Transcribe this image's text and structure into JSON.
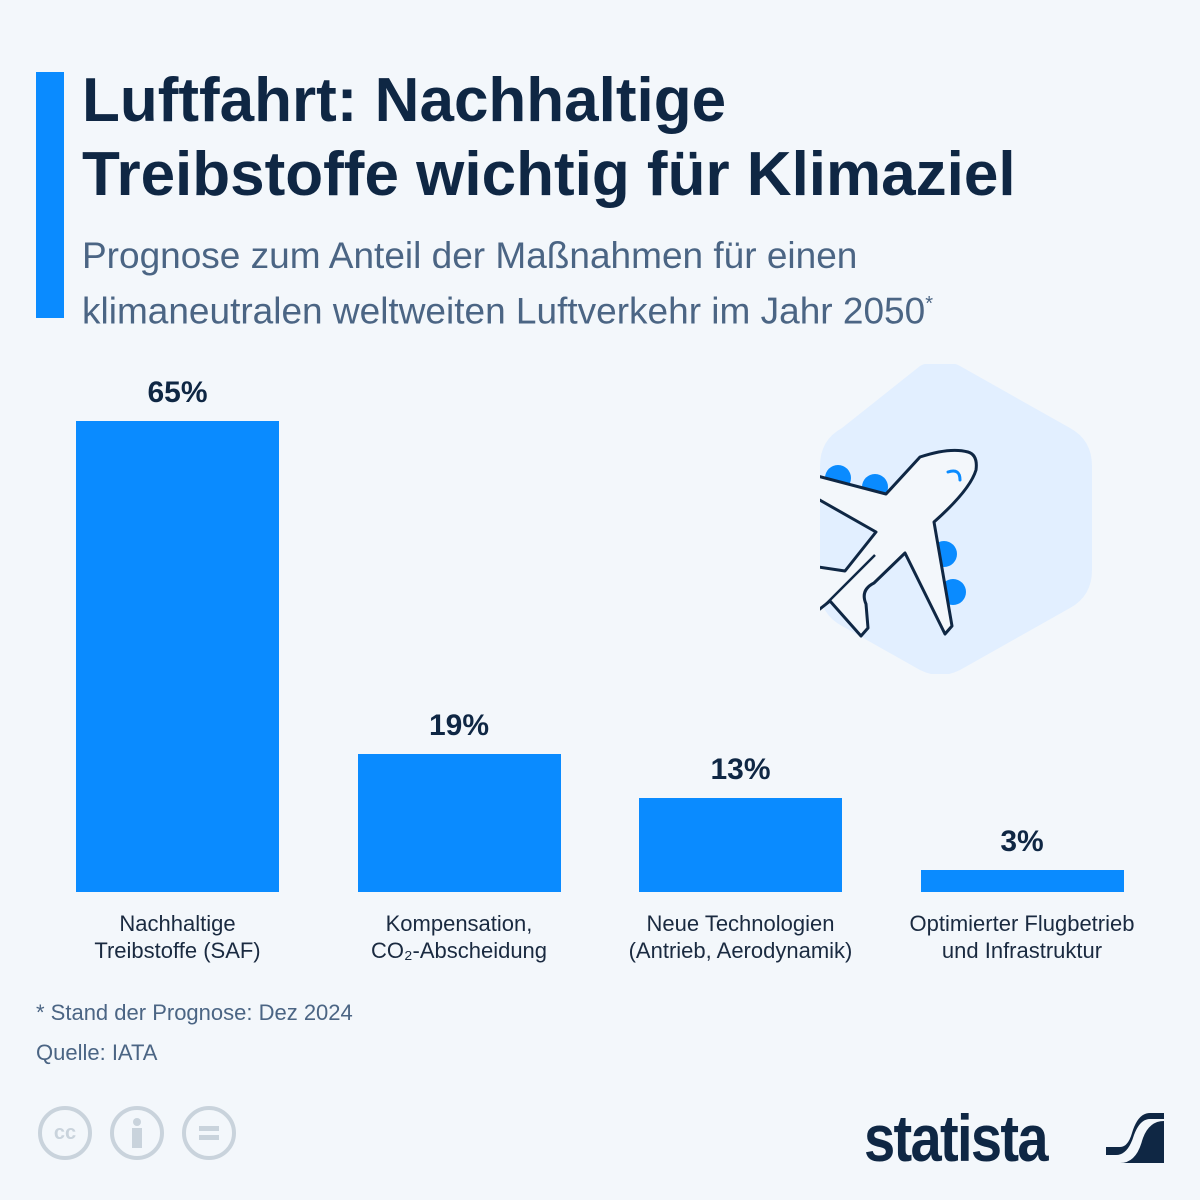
{
  "header": {
    "title_line1": "Luftfahrt: Nachhaltige",
    "title_line2": "Treibstoffe wichtig für Klimaziel",
    "subtitle_line1": "Prognose zum Anteil der Maßnahmen für einen",
    "subtitle_line2": "klimaneutralen weltweiten Luftverkehr im Jahr 2050",
    "subtitle_mark": "*"
  },
  "chart_data": {
    "type": "bar",
    "title": "Luftfahrt: Nachhaltige Treibstoffe wichtig für Klimaziel",
    "categories": [
      "Nachhaltige Treibstoffe (SAF)",
      "Kompensation, CO₂-Abscheidung",
      "Neue Technologien (Antrieb, Aerodynamik)",
      "Optimierter Flugbetrieb und Infrastruktur"
    ],
    "category_lines": [
      [
        "Nachhaltige",
        "Treibstoffe (SAF)"
      ],
      [
        "Kompensation,",
        "CO₂-Abscheidung"
      ],
      [
        "Neue Technologien",
        "(Antrieb, Aerodynamik)"
      ],
      [
        "Optimierter Flugbetrieb",
        "und Infrastruktur"
      ]
    ],
    "values": [
      65,
      19,
      13,
      3
    ],
    "value_labels": [
      "65%",
      "19%",
      "13%",
      "3%"
    ],
    "unit": "%",
    "ylim": [
      0,
      65
    ],
    "grid": false,
    "xlabel": "",
    "ylabel": "",
    "colors": {
      "bar": "#0a8bff"
    }
  },
  "footer": {
    "note": "* Stand der Prognose: Dez 2024",
    "source": "Quelle: IATA",
    "license_cc": "cc",
    "brand": "statista"
  },
  "icons": [
    "airplane-icon",
    "cc-icon",
    "by-icon",
    "nd-icon",
    "statista-logo-icon"
  ]
}
